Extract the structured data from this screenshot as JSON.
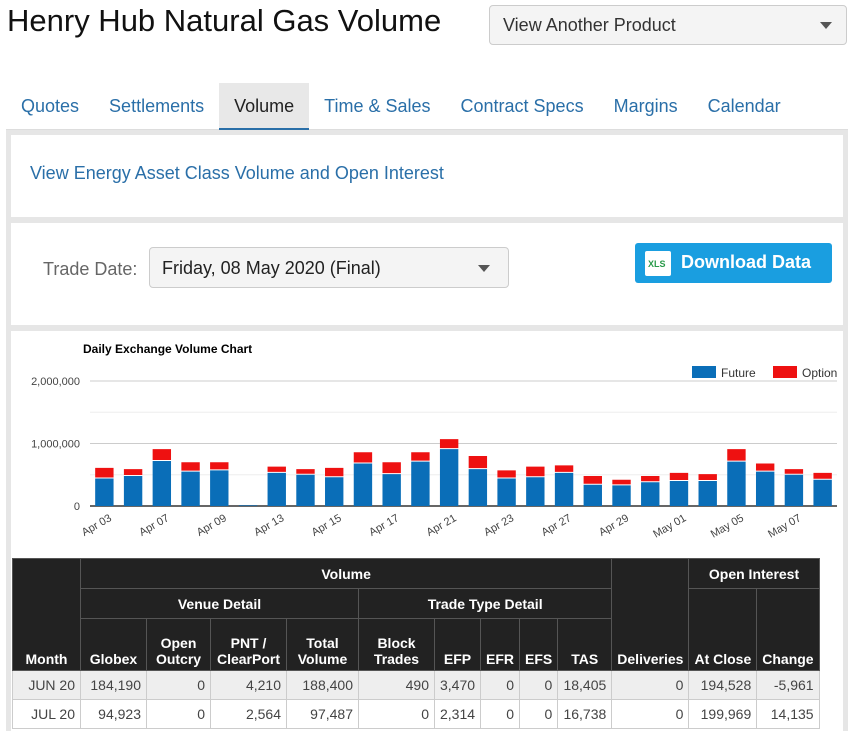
{
  "header": {
    "title": "Henry Hub Natural Gas Volume",
    "product_select": "View Another Product"
  },
  "tabs": [
    "Quotes",
    "Settlements",
    "Volume",
    "Time & Sales",
    "Contract Specs",
    "Margins",
    "Calendar"
  ],
  "link": "View Energy Asset Class Volume and Open Interest",
  "trade_date": {
    "label": "Trade Date:",
    "value": "Friday, 08 May 2020 (Final)"
  },
  "download": {
    "label": "Download Data",
    "icon": "XLS"
  },
  "colors": {
    "future": "#0a6eb8",
    "option": "#ee1111",
    "accent": "#1a9ee0"
  },
  "chart_data": {
    "type": "bar",
    "stacked": true,
    "title": "Daily Exchange Volume Chart",
    "ylim": [
      0,
      2000000
    ],
    "yticks": [
      "0",
      "1,000,000",
      "2,000,000"
    ],
    "legend": [
      {
        "name": "Future"
      },
      {
        "name": "Option"
      }
    ],
    "categories": [
      "Apr 03",
      "Apr 06",
      "Apr 07",
      "Apr 08",
      "Apr 09",
      "Apr 10",
      "Apr 13",
      "Apr 14",
      "Apr 15",
      "Apr 16",
      "Apr 17",
      "Apr 20",
      "Apr 21",
      "Apr 22",
      "Apr 23",
      "Apr 24",
      "Apr 27",
      "Apr 28",
      "Apr 29",
      "Apr 30",
      "May 01",
      "May 04",
      "May 05",
      "May 06",
      "May 07",
      "May 08"
    ],
    "xlabels": [
      "Apr 03",
      "",
      "Apr 07",
      "",
      "Apr 09",
      "",
      "Apr 13",
      "",
      "Apr 15",
      "",
      "Apr 17",
      "",
      "Apr 21",
      "",
      "Apr 23",
      "",
      "Apr 27",
      "",
      "Apr 29",
      "",
      "May 01",
      "",
      "May 05",
      "",
      "May 07",
      ""
    ],
    "series": [
      {
        "name": "Future",
        "values": [
          440000,
          480000,
          720000,
          550000,
          570000,
          10000,
          530000,
          500000,
          460000,
          680000,
          510000,
          710000,
          910000,
          590000,
          440000,
          460000,
          530000,
          340000,
          330000,
          380000,
          400000,
          400000,
          710000,
          550000,
          500000,
          420000
        ]
      },
      {
        "name": "Option",
        "values": [
          170000,
          110000,
          190000,
          150000,
          130000,
          0,
          100000,
          90000,
          150000,
          180000,
          190000,
          150000,
          160000,
          210000,
          130000,
          170000,
          120000,
          140000,
          90000,
          100000,
          130000,
          110000,
          200000,
          130000,
          90000,
          110000
        ]
      }
    ]
  },
  "table": {
    "group_headers": {
      "volume": "Volume",
      "venue": "Venue Detail",
      "trade_type": "Trade Type Detail",
      "open_interest": "Open Interest"
    },
    "columns": [
      "Month",
      "Globex",
      "Open Outcry",
      "PNT / ClearPort",
      "Total Volume",
      "Block Trades",
      "EFP",
      "EFR",
      "EFS",
      "TAS",
      "Deliveries",
      "At Close",
      "Change"
    ],
    "rows": [
      [
        "JUN 20",
        "184,190",
        "0",
        "4,210",
        "188,400",
        "490",
        "3,470",
        "0",
        "0",
        "18,405",
        "0",
        "194,528",
        "-5,961"
      ],
      [
        "JUL 20",
        "94,923",
        "0",
        "2,564",
        "97,487",
        "0",
        "2,314",
        "0",
        "0",
        "16,738",
        "0",
        "199,969",
        "14,135"
      ]
    ]
  }
}
